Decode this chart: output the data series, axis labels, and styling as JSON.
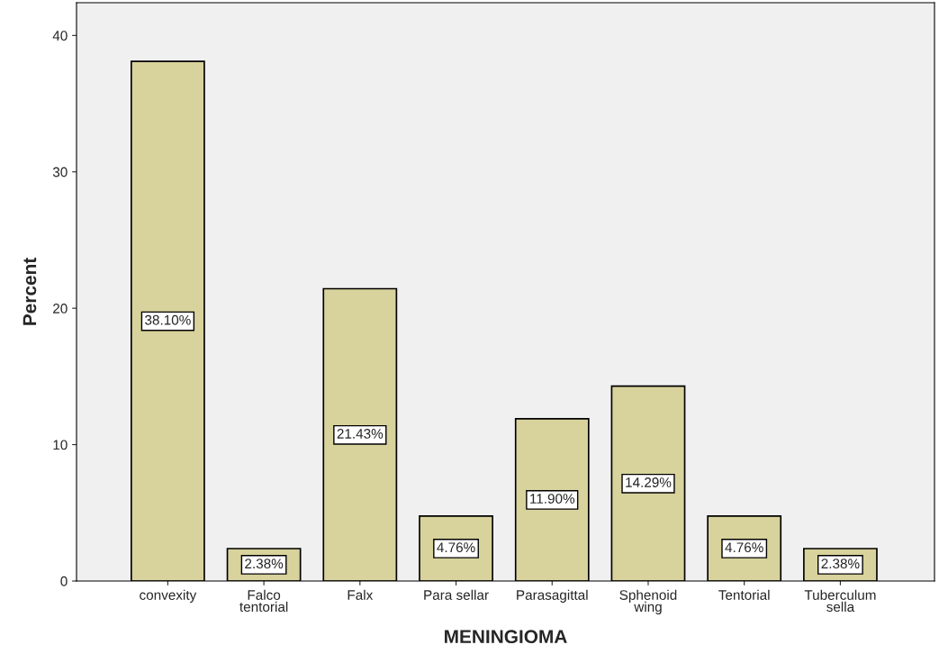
{
  "chart_data": {
    "type": "bar",
    "xlabel": "MENINGIOMA",
    "ylabel": "Percent",
    "categories": [
      "convexity",
      "Falco\ntentorial",
      "Falx",
      "Para sellar",
      "Parasagittal",
      "Sphenoid\nwing",
      "Tentorial",
      "Tuberculum\nsella"
    ],
    "values": [
      38.1,
      2.38,
      21.43,
      4.76,
      11.9,
      14.29,
      4.76,
      2.38
    ],
    "value_labels": [
      "38.10%",
      "2.38%",
      "21.43%",
      "4.76%",
      "11.90%",
      "14.29%",
      "4.76%",
      "2.38%"
    ],
    "color": "#d8d29c",
    "ylim": [
      0,
      42.4
    ],
    "yticks": [
      0,
      10,
      20,
      30,
      40
    ],
    "grid": false
  }
}
